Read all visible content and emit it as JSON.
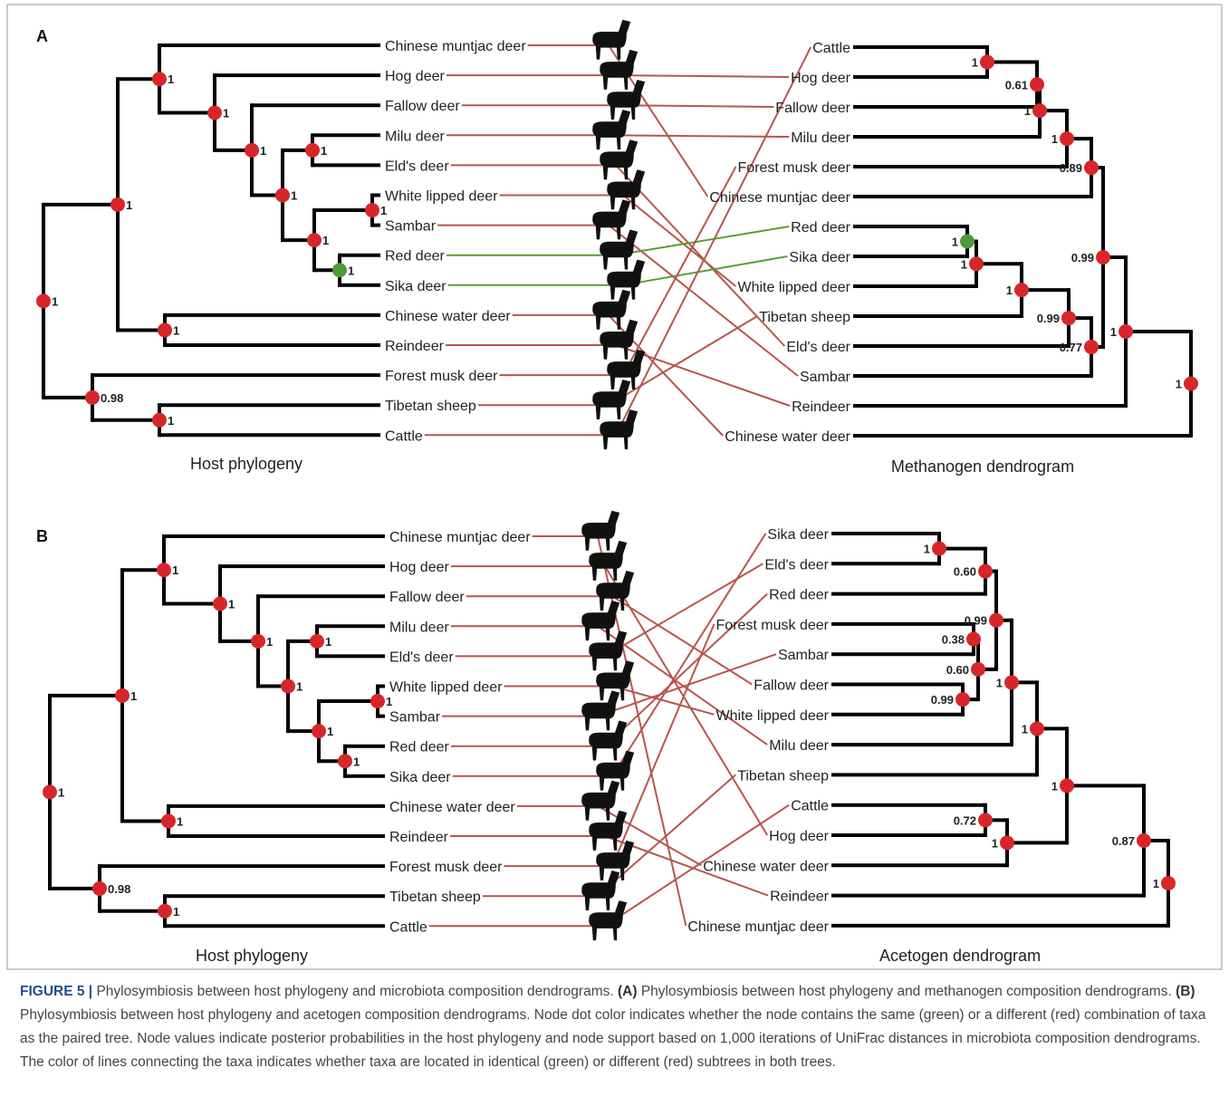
{
  "panels": [
    {
      "letter": "A",
      "host_title": "Host phylogeny",
      "micro_title": "Methanogen dendrogram",
      "host_taxa": [
        "Chinese muntjac deer",
        "Hog deer",
        "Fallow deer",
        "Milu deer",
        "Eld's deer",
        "White lipped deer",
        "Sambar",
        "Red deer",
        "Sika deer",
        "Chinese water deer",
        "Reindeer",
        "Forest musk deer",
        "Tibetan sheep",
        "Cattle"
      ],
      "host_support": [
        "1",
        "1",
        "1",
        "1",
        "1",
        "1",
        "1",
        "1",
        "1",
        "1",
        "1",
        "0.98",
        "1"
      ],
      "host_node_colors": [
        "#d7262b",
        "#d7262b",
        "#d7262b",
        "#d7262b",
        "#d7262b",
        "#d7262b",
        "#d7262b",
        "#d7262b",
        "#d7262b",
        "#4e9a3a",
        "#d7262b",
        "#d7262b",
        "#d7262b"
      ],
      "link_colors": [
        "#b8554c",
        "#b8554c",
        "#b8554c",
        "#b8554c",
        "#b8554c",
        "#b8554c",
        "#b8554c",
        "#55a032",
        "#55a032",
        "#b8554c",
        "#b8554c",
        "#b8554c",
        "#b8554c",
        "#b8554c"
      ],
      "micro_taxa": [
        "Cattle",
        "Hog deer",
        "Fallow deer",
        "Milu deer",
        "Forest musk deer",
        "Chinese muntjac deer",
        "Red deer",
        "Sika deer",
        "White lipped deer",
        "Tibetan sheep",
        "Eld's deer",
        "Sambar",
        "Reindeer",
        "Chinese water deer"
      ],
      "micro_support": [
        "1",
        "1",
        "0.99",
        "0.89",
        "1",
        "1",
        "0.61",
        "1",
        "0.77",
        "0.99",
        "1",
        "1",
        "1"
      ],
      "micro_node_colors": [
        "#d7262b",
        "#d7262b",
        "#d7262b",
        "#d7262b",
        "#d7262b",
        "#d7262b",
        "#d7262b",
        "#d7262b",
        "#d7262b",
        "#d7262b",
        "#d7262b",
        "#d7262b",
        "#4e9a3a"
      ]
    },
    {
      "letter": "B",
      "host_title": "Host phylogeny",
      "micro_title": "Acetogen dendrogram",
      "host_taxa": [
        "Chinese muntjac deer",
        "Hog deer",
        "Fallow deer",
        "Milu deer",
        "Eld's deer",
        "White lipped deer",
        "Sambar",
        "Red deer",
        "Sika deer",
        "Chinese water deer",
        "Reindeer",
        "Forest musk deer",
        "Tibetan sheep",
        "Cattle"
      ],
      "host_support": [
        "1",
        "1",
        "1",
        "1",
        "1",
        "1",
        "1",
        "1",
        "1",
        "1",
        "1",
        "0.98",
        "1"
      ],
      "host_node_colors": [
        "#d7262b",
        "#d7262b",
        "#d7262b",
        "#d7262b",
        "#d7262b",
        "#d7262b",
        "#d7262b",
        "#d7262b",
        "#d7262b",
        "#d7262b",
        "#d7262b",
        "#d7262b",
        "#d7262b"
      ],
      "link_colors": [
        "#b8554c",
        "#b8554c",
        "#b8554c",
        "#b8554c",
        "#b8554c",
        "#b8554c",
        "#b8554c",
        "#b8554c",
        "#b8554c",
        "#b8554c",
        "#b8554c",
        "#b8554c",
        "#b8554c",
        "#b8554c"
      ],
      "micro_taxa": [
        "Sika deer",
        "Eld's deer",
        "Red deer",
        "Forest musk deer",
        "Sambar",
        "Fallow deer",
        "White lipped deer",
        "Milu deer",
        "Tibetan sheep",
        "Cattle",
        "Hog deer",
        "Chinese water deer",
        "Reindeer",
        "Chinese muntjac deer"
      ],
      "micro_support": [
        "1",
        "0.87",
        "1",
        "1",
        "1",
        "0.99",
        "0.60",
        "1",
        "0.60",
        "0.38",
        "0.99",
        "1",
        "0.72"
      ],
      "micro_node_colors": [
        "#d7262b",
        "#d7262b",
        "#d7262b",
        "#d7262b",
        "#d7262b",
        "#d7262b",
        "#d7262b",
        "#d7262b",
        "#d7262b",
        "#d7262b",
        "#d7262b",
        "#d7262b",
        "#d7262b"
      ]
    }
  ],
  "caption": {
    "figure": "FIGURE 5 |",
    "intro": "Phylosymbiosis between host phylogeny and microbiota composition dendrograms.",
    "a_label": "(A)",
    "a_text": "Phylosymbiosis between host phylogeny and methanogen composition dendrograms.",
    "b_label": "(B)",
    "b_text": "Phylosymbiosis between host phylogeny and acetogen composition dendrograms. Node dot color indicates whether the node contains the same (green) or a different (red) combination of taxa as the paired tree. Node values indicate posterior probabilities in the host phylogeny and node support based on 1,000 iterations of UniFrac distances in microbiota composition dendrograms. The color of lines connecting the taxa indicates whether taxa are located in identical (green) or different (red) subtrees in both trees."
  }
}
